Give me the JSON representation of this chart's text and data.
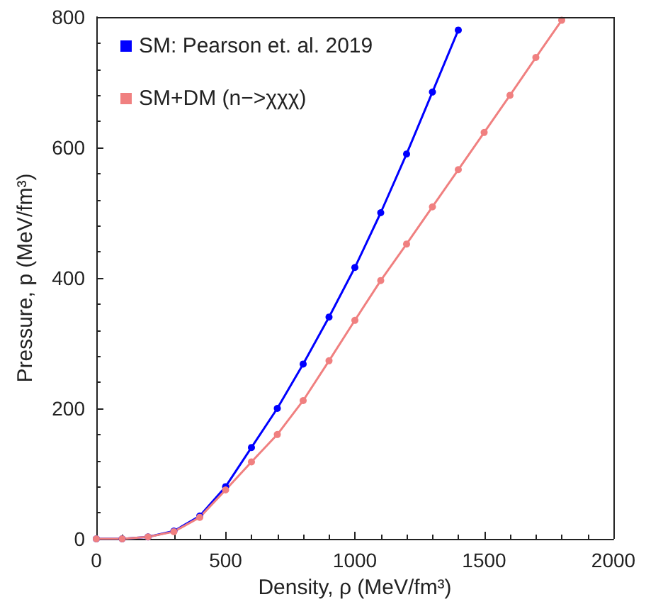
{
  "chart_data": {
    "type": "line",
    "xlabel": "Density, ρ (MeV/fm³)",
    "ylabel": "Pressure, p (MeV/fm³)",
    "xlim": [
      0,
      2000
    ],
    "xticks": [
      0,
      500,
      1000,
      1500,
      2000
    ],
    "ylim": [
      0,
      800
    ],
    "yticks": [
      0,
      200,
      400,
      600,
      800
    ],
    "grid": false,
    "legend": "top left",
    "marker": "circle",
    "line_style": "solid",
    "series": [
      {
        "name": "SM: Pearson et. al. 2019",
        "color": "#0000ff",
        "x": [
          0,
          100,
          200,
          300,
          400,
          500,
          600,
          700,
          800,
          900,
          1000,
          1100,
          1200,
          1300,
          1400
        ],
        "values": [
          0,
          0,
          3,
          12,
          35,
          80,
          140,
          200,
          268,
          340,
          416,
          500,
          590,
          685,
          780
        ]
      },
      {
        "name": "SM+DM (n−>χχχ)",
        "color": "#f08080",
        "x": [
          0,
          100,
          200,
          300,
          400,
          500,
          600,
          700,
          800,
          900,
          1000,
          1100,
          1200,
          1300,
          1400,
          1500,
          1600,
          1700,
          1800
        ],
        "values": [
          0,
          0,
          3,
          11,
          33,
          75,
          118,
          160,
          212,
          273,
          335,
          396,
          452,
          509,
          566,
          623,
          680,
          738,
          795
        ]
      }
    ]
  }
}
